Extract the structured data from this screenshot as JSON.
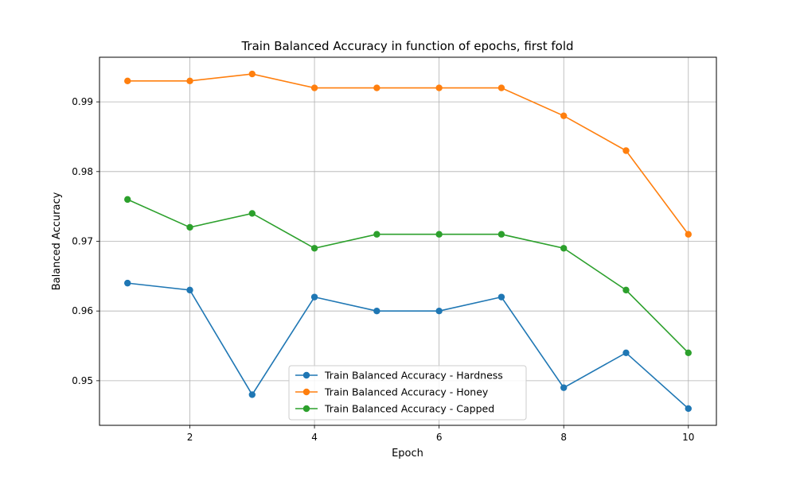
{
  "chart_data": {
    "type": "line",
    "title": "Train Balanced Accuracy in function of epochs, first fold",
    "xlabel": "Epoch",
    "ylabel": "Balanced Accuracy",
    "xlim": [
      0.55,
      10.45
    ],
    "ylim": [
      0.9436,
      0.9964
    ],
    "xticks": [
      2,
      4,
      6,
      8,
      10
    ],
    "xtick_labels": [
      "2",
      "4",
      "6",
      "8",
      "10"
    ],
    "yticks": [
      0.95,
      0.96,
      0.97,
      0.98,
      0.99
    ],
    "ytick_labels": [
      "0.95",
      "0.96",
      "0.97",
      "0.98",
      "0.99"
    ],
    "grid": true,
    "legend_position": "bottom-center",
    "x": [
      1,
      2,
      3,
      4,
      5,
      6,
      7,
      8,
      9,
      10
    ],
    "series": [
      {
        "name": "Train Balanced Accuracy - Hardness",
        "color": "#1f77b4",
        "values": [
          0.964,
          0.963,
          0.948,
          0.962,
          0.96,
          0.96,
          0.962,
          0.949,
          0.954,
          0.946
        ]
      },
      {
        "name": "Train Balanced Accuracy - Honey",
        "color": "#ff7f0e",
        "values": [
          0.993,
          0.993,
          0.994,
          0.992,
          0.992,
          0.992,
          0.992,
          0.988,
          0.983,
          0.971
        ]
      },
      {
        "name": "Train Balanced Accuracy - Capped",
        "color": "#2ca02c",
        "values": [
          0.976,
          0.972,
          0.974,
          0.969,
          0.971,
          0.971,
          0.971,
          0.969,
          0.963,
          0.954
        ]
      }
    ]
  }
}
